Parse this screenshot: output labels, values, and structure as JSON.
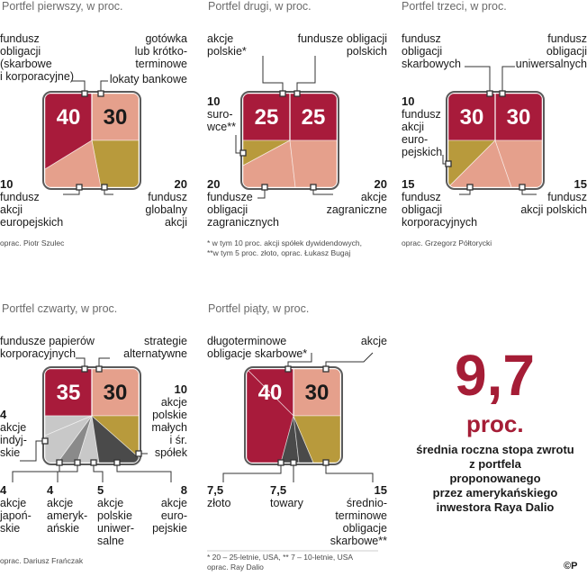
{
  "colors": {
    "maroon": "#a81b3b",
    "salmon": "#e5a08c",
    "gold": "#b89a3c",
    "gray_light": "#c8c8c8",
    "gray_mid": "#8a8a8a",
    "gray_dark": "#4a4a4a",
    "border": "#5a5a5a",
    "accent": "#a51d36"
  },
  "p1": {
    "title": "Portfel pierwszy, w proc.",
    "values": [
      "40",
      "30"
    ],
    "l_tl": "fundusz\nobligacji\n(skarbowe\ni korporacyjne)",
    "l_tr1": "gotówka\nlub krótko-\nterminowe",
    "l_tr2": "lokaty bankowe",
    "bl_num": "10",
    "bl_txt": "fundusz\nakcji\neuropejskich",
    "br_num": "20",
    "br_txt": "fundusz\nglobalny\nakcji",
    "note": "oprac. Piotr Szulec"
  },
  "p2": {
    "title": "Portfel drugi, w proc.",
    "values": [
      "25",
      "25"
    ],
    "l_tl": "akcje\npolskie*",
    "l_tr": "fundusze obligacji\npolskich",
    "ml_num": "10",
    "ml_txt": "suro-\nwce**",
    "bl_num": "20",
    "bl_txt": "fundusze\nobligacji\nzagranicznych",
    "br_num": "20",
    "br_txt": "akcje\nzagraniczne",
    "note": "* w tym 10 proc. akcji spółek dywidendowych,\n**w tym 5 proc. złoto, oprac. Łukasz Bugaj"
  },
  "p3": {
    "title": "Portfel trzeci, w proc.",
    "values": [
      "30",
      "30"
    ],
    "l_tl": "fundusz\nobligacji\nskarbowych",
    "l_tr": "fundusz\nobligacji\nuniwersalnych",
    "ml_num": "10",
    "ml_txt": "fundusz\nakcji\neuro-\npejskich",
    "bl_num": "15",
    "bl_txt": "fundusz\nobligacji\nkorporacyjnych",
    "br_num": "15",
    "br_txt": "fundusz\nakcji polskich",
    "note": "oprac. Grzegorz Półtorycki"
  },
  "p4": {
    "title": "Portfel czwarty, w proc.",
    "values": [
      "35",
      "30"
    ],
    "l_tl": "fundusze papierów\nkorporacyjnych",
    "l_tr": "strategie\nalternatywne",
    "ml_num": "4",
    "ml_txt": "akcje\nindyj-\nskie",
    "r_num": "10",
    "r_txt": "akcje\npolskie\nmałych\ni śr.\nspółek",
    "b1_num": "4",
    "b1_txt": "akcje\njapoń-\nskie",
    "b2_num": "4",
    "b2_txt": "akcje\nameryk-\nańskie",
    "b3_num": "5",
    "b3_txt": "akcje\npolskie\nuniwer-\nsalne",
    "b4_num": "8",
    "b4_txt": "akcje\neuro-\npejskie",
    "note": "oprac. Dariusz Frańczak"
  },
  "p5": {
    "title": "Portfel piąty, w proc.",
    "values": [
      "40",
      "30"
    ],
    "l_tl": "długoterminowe\nobligacje skarbowe*",
    "l_tr": "akcje",
    "b1_num": "7,5",
    "b1_txt": "złoto",
    "b2_num": "7,5",
    "b2_txt": "towary",
    "b3_num": "15",
    "b3_txt": "średnio-\nterminowe\nobligacje\nskarbowe**",
    "note": "* 20 – 25-letnie, USA, ** 7 – 10-letnie, USA\noprac. Ray Dalio"
  },
  "summary": {
    "value": "9,7",
    "unit": "proc.",
    "text": "średnia roczna stopa zwrotu\nz portfela\nproponowanego\nprzez amerykańskiego\ninwestora Raya Dalio"
  },
  "logo": "©P",
  "chart_data": [
    {
      "type": "pie",
      "title": "Portfel pierwszy, w proc.",
      "categories": [
        "fundusz obligacji (skarbowe i korporacyjne)",
        "gotówka lub krótkoterminowe lokaty bankowe",
        "fundusz akcji europejskich",
        "fundusz globalny akcji"
      ],
      "values": [
        40,
        30,
        10,
        20
      ]
    },
    {
      "type": "pie",
      "title": "Portfel drugi, w proc.",
      "categories": [
        "akcje polskie*",
        "fundusze obligacji polskich",
        "surowce**",
        "fundusze obligacji zagranicznych",
        "akcje zagraniczne"
      ],
      "values": [
        25,
        25,
        10,
        20,
        20
      ]
    },
    {
      "type": "pie",
      "title": "Portfel trzeci, w proc.",
      "categories": [
        "fundusz obligacji skarbowych",
        "fundusz obligacji uniwersalnych",
        "fundusz akcji europejskich",
        "fundusz obligacji korporacyjnych",
        "fundusz akcji polskich"
      ],
      "values": [
        30,
        30,
        10,
        15,
        15
      ]
    },
    {
      "type": "pie",
      "title": "Portfel czwarty, w proc.",
      "categories": [
        "fundusze papierów korporacyjnych",
        "strategie alternatywne",
        "akcje indyjskie",
        "akcje japońskie",
        "akcje amerykańskie",
        "akcje polskie uniwersalne",
        "akcje europejskie",
        "akcje polskie małych i śr. spółek"
      ],
      "values": [
        35,
        30,
        4,
        4,
        4,
        5,
        8,
        10
      ]
    },
    {
      "type": "pie",
      "title": "Portfel piąty, w proc.",
      "categories": [
        "długoterminowe obligacje skarbowe*",
        "akcje",
        "złoto",
        "towary",
        "średnioterminowe obligacje skarbowe**"
      ],
      "values": [
        40,
        30,
        7.5,
        7.5,
        15
      ]
    }
  ]
}
